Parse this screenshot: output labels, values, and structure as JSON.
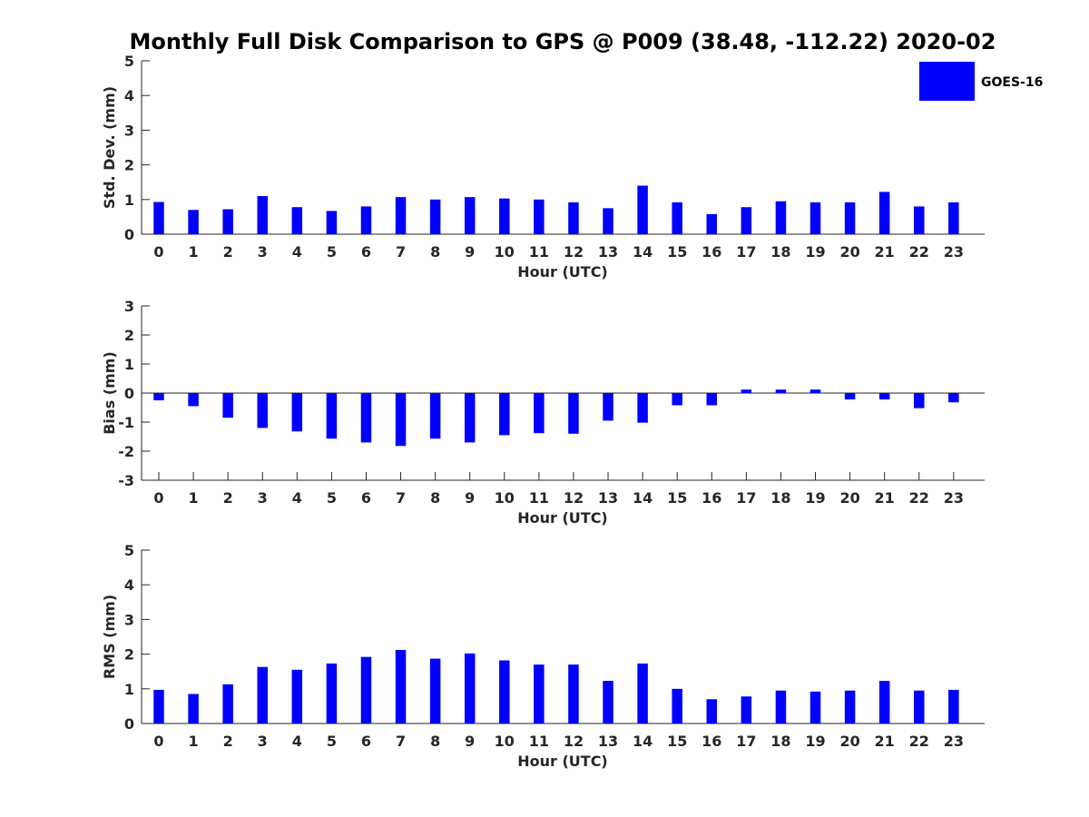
{
  "figure": {
    "title": "Monthly Full Disk Comparison to GPS @ P009 (38.48, -112.22) 2020-02",
    "legend": {
      "label": "GOES-16",
      "color": "#0000ff",
      "placement": "top-right"
    },
    "bar_color": "#0000ff"
  },
  "chart_data": [
    {
      "type": "bar",
      "title": "",
      "xlabel": "Hour (UTC)",
      "ylabel": "Std. Dev. (mm)",
      "categories": [
        "0",
        "1",
        "2",
        "3",
        "4",
        "5",
        "6",
        "7",
        "8",
        "9",
        "10",
        "11",
        "12",
        "13",
        "14",
        "15",
        "16",
        "17",
        "18",
        "19",
        "20",
        "21",
        "22",
        "23"
      ],
      "series": [
        {
          "name": "GOES-16",
          "values": [
            0.93,
            0.7,
            0.72,
            1.1,
            0.78,
            0.67,
            0.8,
            1.07,
            1.0,
            1.07,
            1.03,
            1.0,
            0.92,
            0.75,
            1.4,
            0.92,
            0.58,
            0.78,
            0.95,
            0.92,
            0.92,
            1.22,
            0.8,
            0.92
          ]
        }
      ],
      "ylim": [
        0,
        5
      ],
      "yticks": [
        0,
        1,
        2,
        3,
        4,
        5
      ],
      "grid": false
    },
    {
      "type": "bar",
      "title": "",
      "xlabel": "Hour (UTC)",
      "ylabel": "Bias (mm)",
      "categories": [
        "0",
        "1",
        "2",
        "3",
        "4",
        "5",
        "6",
        "7",
        "8",
        "9",
        "10",
        "11",
        "12",
        "13",
        "14",
        "15",
        "16",
        "17",
        "18",
        "19",
        "20",
        "21",
        "22",
        "23"
      ],
      "series": [
        {
          "name": "GOES-16",
          "values": [
            -0.25,
            -0.45,
            -0.85,
            -1.2,
            -1.32,
            -1.57,
            -1.7,
            -1.82,
            -1.57,
            -1.7,
            -1.45,
            -1.38,
            -1.4,
            -0.95,
            -1.02,
            -0.42,
            -0.42,
            0.12,
            0.12,
            0.12,
            -0.22,
            -0.22,
            -0.52,
            -0.32
          ]
        }
      ],
      "ylim": [
        -3,
        3
      ],
      "yticks": [
        -3,
        -2,
        -1,
        0,
        1,
        2,
        3
      ],
      "grid": false
    },
    {
      "type": "bar",
      "title": "",
      "xlabel": "Hour (UTC)",
      "ylabel": "RMS (mm)",
      "categories": [
        "0",
        "1",
        "2",
        "3",
        "4",
        "5",
        "6",
        "7",
        "8",
        "9",
        "10",
        "11",
        "12",
        "13",
        "14",
        "15",
        "16",
        "17",
        "18",
        "19",
        "20",
        "21",
        "22",
        "23"
      ],
      "series": [
        {
          "name": "GOES-16",
          "values": [
            0.97,
            0.85,
            1.13,
            1.63,
            1.55,
            1.73,
            1.92,
            2.12,
            1.87,
            2.02,
            1.82,
            1.7,
            1.7,
            1.23,
            1.73,
            1.0,
            0.7,
            0.78,
            0.95,
            0.92,
            0.95,
            1.23,
            0.95,
            0.97
          ]
        }
      ],
      "ylim": [
        0,
        5
      ],
      "yticks": [
        0,
        1,
        2,
        3,
        4,
        5
      ],
      "grid": false
    }
  ]
}
